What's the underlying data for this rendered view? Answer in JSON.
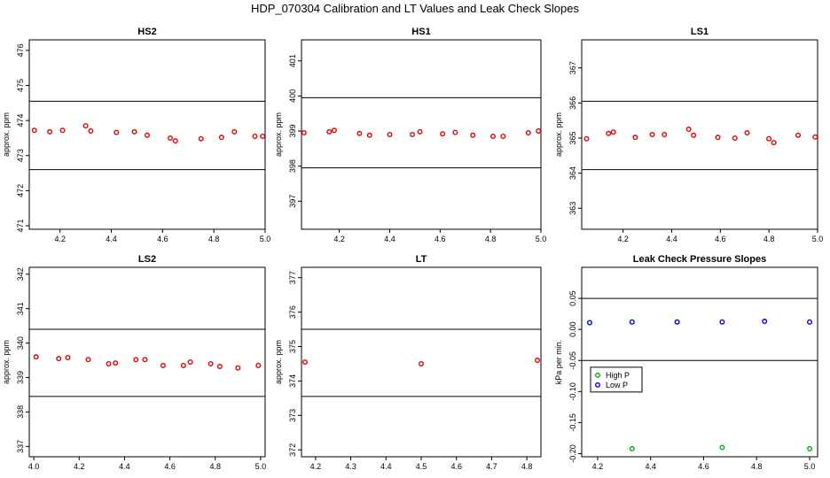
{
  "figure_title": "HDP_070304  Calibration and LT Values and Leak Check Slopes",
  "colors": {
    "cal": "#e00000",
    "high_p": "#00b000",
    "low_p": "#0000dd"
  },
  "chart_data": [
    {
      "type": "scatter",
      "title": "HS2",
      "ylabel": "approx. ppm",
      "xlim": [
        4.08,
        5.0
      ],
      "ylim": [
        470.9,
        476.3
      ],
      "xticks": [
        4.2,
        4.4,
        4.6,
        4.8,
        5.0
      ],
      "xtick_labels": [
        "4.2",
        "4.4",
        "4.6",
        "4.8",
        "5.0"
      ],
      "yticks": [
        471,
        472,
        473,
        474,
        475,
        476
      ],
      "ytick_labels": [
        "471",
        "472",
        "473",
        "474",
        "475",
        "476"
      ],
      "hlines": [
        474.55,
        472.6
      ],
      "x": [
        4.1,
        4.16,
        4.21,
        4.3,
        4.32,
        4.42,
        4.49,
        4.54,
        4.63,
        4.65,
        4.75,
        4.83,
        4.88,
        4.96,
        4.99
      ],
      "y": [
        473.72,
        473.68,
        473.72,
        473.85,
        473.7,
        473.66,
        473.68,
        473.58,
        473.5,
        473.42,
        473.48,
        473.52,
        473.68,
        473.55,
        473.55
      ]
    },
    {
      "type": "scatter",
      "title": "HS1",
      "ylabel": "approx. ppm",
      "xlim": [
        4.05,
        5.0
      ],
      "ylim": [
        396.2,
        401.6
      ],
      "xticks": [
        4.2,
        4.4,
        4.6,
        4.8,
        5.0
      ],
      "xtick_labels": [
        "4.2",
        "4.4",
        "4.6",
        "4.8",
        "5.0"
      ],
      "yticks": [
        397,
        398,
        399,
        400,
        401
      ],
      "ytick_labels": [
        "397",
        "398",
        "399",
        "400",
        "401"
      ],
      "hlines": [
        399.95,
        397.95
      ],
      "x": [
        4.06,
        4.16,
        4.18,
        4.28,
        4.32,
        4.4,
        4.49,
        4.52,
        4.61,
        4.66,
        4.73,
        4.81,
        4.85,
        4.95,
        4.99
      ],
      "y": [
        398.95,
        398.98,
        399.02,
        398.93,
        398.88,
        398.9,
        398.9,
        398.98,
        398.92,
        398.96,
        398.88,
        398.85,
        398.85,
        398.95,
        399.0
      ]
    },
    {
      "type": "scatter",
      "title": "LS1",
      "ylabel": "approx. ppm",
      "xlim": [
        4.03,
        5.0
      ],
      "ylim": [
        362.4,
        367.8
      ],
      "xticks": [
        4.2,
        4.4,
        4.6,
        4.8,
        5.0
      ],
      "xtick_labels": [
        "4.2",
        "4.4",
        "4.6",
        "4.8",
        "5.0"
      ],
      "yticks": [
        363,
        364,
        365,
        366,
        367
      ],
      "ytick_labels": [
        "363",
        "364",
        "365",
        "366",
        "367"
      ],
      "hlines": [
        366.05,
        364.1
      ],
      "x": [
        4.05,
        4.14,
        4.16,
        4.25,
        4.32,
        4.37,
        4.47,
        4.49,
        4.59,
        4.66,
        4.71,
        4.8,
        4.82,
        4.92,
        4.99
      ],
      "y": [
        364.98,
        365.13,
        365.17,
        365.02,
        365.1,
        365.1,
        365.25,
        365.08,
        365.02,
        365.0,
        365.15,
        364.98,
        364.87,
        365.08,
        365.03
      ]
    },
    {
      "type": "scatter",
      "title": "LS2",
      "ylabel": "approx. ppm",
      "xlim": [
        3.98,
        5.02
      ],
      "ylim": [
        336.7,
        342.2
      ],
      "xticks": [
        4.0,
        4.2,
        4.4,
        4.6,
        4.8,
        5.0
      ],
      "xtick_labels": [
        "4.0",
        "4.2",
        "4.4",
        "4.6",
        "4.8",
        "5.0"
      ],
      "yticks": [
        337,
        338,
        339,
        340,
        341,
        342
      ],
      "ytick_labels": [
        "337",
        "338",
        "339",
        "340",
        "341",
        "342"
      ],
      "hlines": [
        340.4,
        338.45
      ],
      "x": [
        4.01,
        4.11,
        4.15,
        4.24,
        4.33,
        4.36,
        4.45,
        4.49,
        4.57,
        4.66,
        4.69,
        4.78,
        4.82,
        4.9,
        4.99
      ],
      "y": [
        339.6,
        339.55,
        339.58,
        339.52,
        339.4,
        339.42,
        339.52,
        339.52,
        339.35,
        339.35,
        339.45,
        339.4,
        339.32,
        339.28,
        339.35
      ]
    },
    {
      "type": "scatter",
      "title": "LT",
      "ylabel": "approx. ppm",
      "xlim": [
        4.16,
        4.84
      ],
      "ylim": [
        371.8,
        377.3
      ],
      "xticks": [
        4.2,
        4.3,
        4.4,
        4.5,
        4.6,
        4.7,
        4.8
      ],
      "xtick_labels": [
        "4.2",
        "4.3",
        "4.4",
        "4.5",
        "4.6",
        "4.7",
        "4.8"
      ],
      "yticks": [
        372,
        373,
        374,
        375,
        376,
        377
      ],
      "ytick_labels": [
        "372",
        "373",
        "374",
        "375",
        "376",
        "377"
      ],
      "hlines": [
        375.5,
        373.55
      ],
      "x": [
        4.17,
        4.5,
        4.83
      ],
      "y": [
        374.55,
        374.5,
        374.6
      ]
    },
    {
      "type": "scatter",
      "title": "Leak Check Pressure Slopes",
      "ylabel": "kPa per min.",
      "xlim": [
        4.14,
        5.03
      ],
      "ylim": [
        -0.205,
        0.1
      ],
      "xticks": [
        4.2,
        4.4,
        4.6,
        4.8,
        5.0
      ],
      "xtick_labels": [
        "4.2",
        "4.4",
        "4.6",
        "4.8",
        "5.0"
      ],
      "yticks": [
        -0.2,
        -0.15,
        -0.1,
        -0.05,
        0.0,
        0.05
      ],
      "ytick_labels": [
        "-0.20",
        "-0.15",
        "-0.10",
        "-0.05",
        "0.00",
        "0.05"
      ],
      "hlines": [
        0.05,
        -0.05
      ],
      "series": [
        {
          "name": "High P",
          "color": "#00b000",
          "x": [
            4.33,
            4.67,
            5.0
          ],
          "y": [
            -0.192,
            -0.19,
            -0.192
          ]
        },
        {
          "name": "Low P",
          "color": "#0000dd",
          "x": [
            4.17,
            4.33,
            4.5,
            4.67,
            4.83,
            5.0
          ],
          "y": [
            0.011,
            0.012,
            0.012,
            0.012,
            0.013,
            0.012
          ]
        }
      ],
      "legend": "center-left"
    }
  ]
}
